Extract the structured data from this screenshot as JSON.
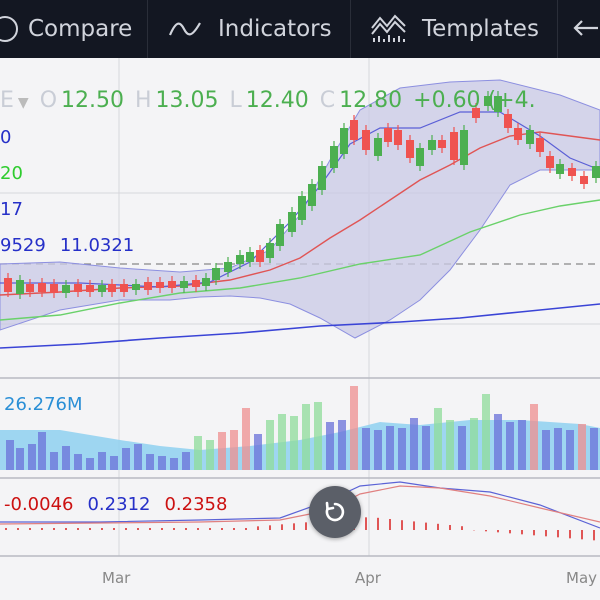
{
  "toolbar": {
    "compare_label": "Compare",
    "indicators_label": "Indicators",
    "templates_label": "Templates"
  },
  "legend": {
    "symbol_suffix": "E",
    "open_label": "O",
    "open_value": "12.50",
    "high_label": "H",
    "high_value": "13.05",
    "low_label": "L",
    "low_value": "12.40",
    "close_label": "C",
    "close_value": "12.80",
    "change_value": "+0.60 (+4.",
    "ma_line_1": "0",
    "ma_line_2": "20",
    "ma_line_3": "17",
    "bb_values": [
      "9529",
      "11.0321"
    ]
  },
  "volume": {
    "value": "26.276M"
  },
  "macd": {
    "values": [
      "-0.0046",
      "0.2312",
      "0.2358"
    ]
  },
  "x_axis": {
    "labels": [
      "Mar",
      "Apr",
      "May"
    ]
  },
  "colors": {
    "up": "#4caf50",
    "down": "#ef5350",
    "bb": "#6c6fd6",
    "ma_red": "#e05555",
    "ma_green": "#6ad16a",
    "ma_blue": "#3a44d6",
    "volume_area": "#8ed0f0",
    "macd_blue": "#3a44d6",
    "macd_red": "#cc1111",
    "toolbar_bg": "#131722"
  },
  "icons": {
    "reset_chart": "undo-arrow-icon",
    "compare": "compare-icon",
    "indicators": "indicators-icon",
    "templates": "templates-icon"
  }
}
